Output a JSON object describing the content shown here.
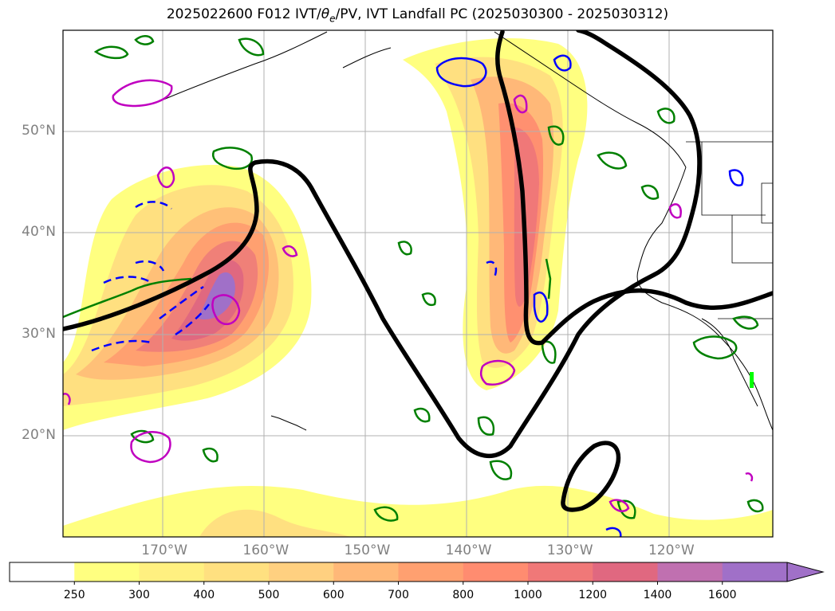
{
  "title": {
    "prefix": "2025022600 F012 IVT/",
    "theta": "θ",
    "theta_sub": "e",
    "suffix": "/PV, IVT Landfall PC (2025030300 - 2025030312)"
  },
  "map": {
    "lon_range": [
      -180,
      -110
    ],
    "lat_range": [
      10,
      60
    ],
    "lon_ticks": [
      {
        "lon": -170,
        "label": "170°W"
      },
      {
        "lon": -160,
        "label": "160°W"
      },
      {
        "lon": -150,
        "label": "150°W"
      },
      {
        "lon": -140,
        "label": "140°W"
      },
      {
        "lon": -130,
        "label": "130°W"
      },
      {
        "lon": -120,
        "label": "120°W"
      }
    ],
    "lat_ticks": [
      {
        "lat": 20,
        "label": "20°N"
      },
      {
        "lat": 30,
        "label": "30°N"
      },
      {
        "lat": 40,
        "label": "40°N"
      },
      {
        "lat": 50,
        "label": "50°N"
      }
    ],
    "grid": true,
    "pc_contour_color": "#000000",
    "theta_e_color": "#008000",
    "pv_positive_color": "#0000ff",
    "pv_negative_color": "#c000c0"
  },
  "colorbar": {
    "levels": [
      "250",
      "300",
      "400",
      "500",
      "600",
      "700",
      "800",
      "1000",
      "1200",
      "1400",
      "1600"
    ],
    "colors": [
      "#ffffff",
      "#ffff80",
      "#fff080",
      "#ffe080",
      "#ffd080",
      "#ffb878",
      "#ffa070",
      "#ff8c70",
      "#f07878",
      "#e06880",
      "#c070b0",
      "#a070c8"
    ],
    "extend": "max"
  }
}
